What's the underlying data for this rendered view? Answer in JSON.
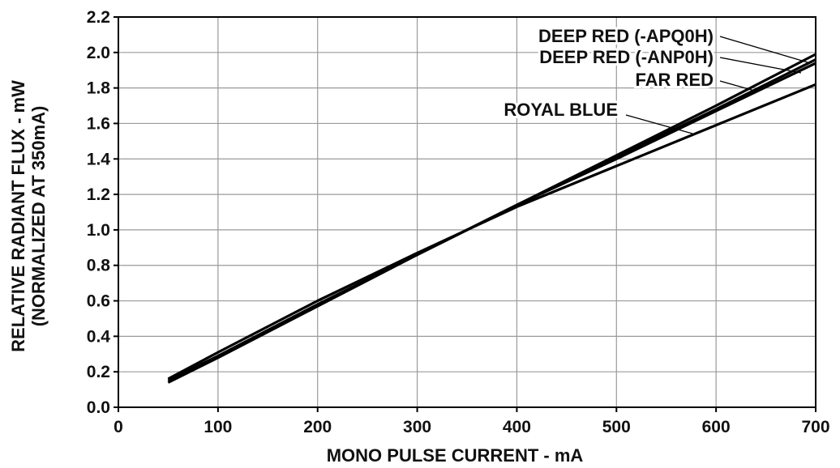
{
  "chart_data": {
    "type": "line",
    "title": "",
    "xlabel": "MONO PULSE CURRENT - mA",
    "ylabel": "RELATIVE RADIANT FLUX - mW",
    "ylabel2": "(NORMALIZED AT 350mA)",
    "xlim": [
      0,
      700
    ],
    "ylim": [
      0.0,
      2.2
    ],
    "xticks": [
      0,
      100,
      200,
      300,
      400,
      500,
      600,
      700
    ],
    "xtick_labels": [
      "0",
      "100",
      "200",
      "300",
      "400",
      "500",
      "600",
      "700"
    ],
    "yticks": [
      0.0,
      0.2,
      0.4,
      0.6,
      0.8,
      1.0,
      1.2,
      1.4,
      1.6,
      1.8,
      2.0,
      2.2
    ],
    "ytick_labels": [
      "0.0",
      "0.2",
      "0.4",
      "0.6",
      "0.8",
      "1.0",
      "1.2",
      "1.4",
      "1.6",
      "1.8",
      "2.0",
      "2.2"
    ],
    "grid": true,
    "series": [
      {
        "name": "DEEP RED (-APQ0H)",
        "x": [
          50,
          100,
          200,
          300,
          350,
          400,
          500,
          600,
          700
        ],
        "values": [
          0.14,
          0.28,
          0.57,
          0.86,
          1.0,
          1.14,
          1.42,
          1.7,
          1.99
        ]
      },
      {
        "name": "DEEP RED (-ANP0H)",
        "x": [
          50,
          100,
          200,
          300,
          350,
          400,
          500,
          600,
          700
        ],
        "values": [
          0.14,
          0.28,
          0.57,
          0.86,
          1.0,
          1.14,
          1.41,
          1.68,
          1.96
        ]
      },
      {
        "name": "FAR RED",
        "x": [
          50,
          100,
          200,
          300,
          350,
          400,
          500,
          600,
          700
        ],
        "values": [
          0.15,
          0.29,
          0.58,
          0.86,
          1.0,
          1.14,
          1.4,
          1.67,
          1.94
        ]
      },
      {
        "name": "ROYAL BLUE",
        "x": [
          50,
          100,
          200,
          300,
          350,
          400,
          500,
          600,
          700
        ],
        "values": [
          0.16,
          0.31,
          0.6,
          0.87,
          1.0,
          1.13,
          1.36,
          1.59,
          1.82
        ]
      }
    ]
  }
}
